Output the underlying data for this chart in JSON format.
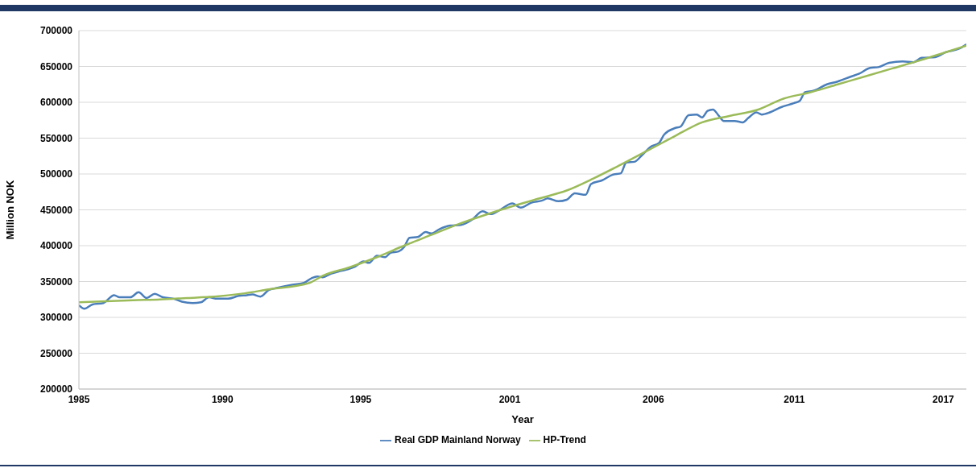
{
  "chart_data": {
    "type": "line",
    "xlabel": "Year",
    "ylabel": "Million NOK",
    "ylim": [
      200000,
      700000
    ],
    "yticks": [
      200000,
      250000,
      300000,
      350000,
      400000,
      450000,
      500000,
      550000,
      600000,
      650000,
      700000
    ],
    "xlim": [
      1985,
      2017.75
    ],
    "xticks": [
      {
        "value": 1985,
        "label": "1985"
      },
      {
        "value": 1990.3,
        "label": "1990"
      },
      {
        "value": 1995.4,
        "label": "1995"
      },
      {
        "value": 2000.9,
        "label": "2001"
      },
      {
        "value": 2006.2,
        "label": "2006"
      },
      {
        "value": 2011.4,
        "label": "2011"
      },
      {
        "value": 2016.9,
        "label": "2017"
      }
    ],
    "grid": "y",
    "legend": "bottom",
    "marker": "none",
    "line_style": "solid",
    "series": [
      {
        "name": "Real GDP Mainland Norway",
        "color": "#4a7ebb",
        "x": [
          1985,
          1985.2,
          1985.5,
          1985.9,
          1986.3,
          1986.5,
          1986.9,
          1987.2,
          1987.5,
          1987.8,
          1988.1,
          1988.5,
          1988.8,
          1989.2,
          1989.5,
          1989.8,
          1990.1,
          1990.5,
          1990.9,
          1991.2,
          1991.4,
          1991.7,
          1992,
          1992.3,
          1992.8,
          1993.3,
          1993.6,
          1993.8,
          1994,
          1994.3,
          1994.7,
          1995.2,
          1995.5,
          1995.7,
          1996,
          1996.3,
          1996.5,
          1996.8,
          1997,
          1997.2,
          1997.5,
          1997.8,
          1998,
          1998.3,
          1998.7,
          1999.1,
          1999.5,
          1999.9,
          2000.2,
          2000.5,
          2001,
          2001.3,
          2001.7,
          2002.1,
          2002.3,
          2002.7,
          2003,
          2003.3,
          2003.7,
          2003.9,
          2004.3,
          2004.7,
          2005,
          2005.2,
          2005.5,
          2005.8,
          2006.1,
          2006.4,
          2006.6,
          2007,
          2007.2,
          2007.5,
          2007.8,
          2008,
          2008.2,
          2008.4,
          2008.6,
          2008.8,
          2009.2,
          2009.5,
          2009.7,
          2010,
          2010.2,
          2010.5,
          2010.9,
          2011.4,
          2011.6,
          2011.8,
          2012.1,
          2012.6,
          2013,
          2013.5,
          2013.8,
          2014.2,
          2014.5,
          2014.9,
          2015.4,
          2015.8,
          2016.1,
          2016.6,
          2017,
          2017.5,
          2017.75
        ],
        "values": [
          317000,
          312000,
          318000,
          320000,
          331000,
          328000,
          328000,
          335000,
          327000,
          333000,
          328000,
          326000,
          322000,
          320000,
          321000,
          328000,
          326000,
          326000,
          330000,
          331000,
          332000,
          329000,
          338000,
          341000,
          345000,
          348000,
          355000,
          357000,
          356000,
          361000,
          365000,
          371000,
          378000,
          376000,
          386000,
          384000,
          390000,
          392000,
          398000,
          411000,
          412000,
          419000,
          417000,
          423000,
          428000,
          429000,
          436000,
          448000,
          444000,
          449000,
          459000,
          453000,
          460000,
          463000,
          466000,
          462000,
          464000,
          473000,
          471000,
          486000,
          491000,
          499000,
          501000,
          516000,
          517000,
          527000,
          538000,
          543000,
          555000,
          564000,
          566000,
          582000,
          583000,
          579000,
          588000,
          590000,
          582000,
          574000,
          574000,
          572000,
          578000,
          586000,
          583000,
          586000,
          593000,
          599000,
          602000,
          614000,
          616000,
          625000,
          629000,
          636000,
          640000,
          648000,
          649000,
          655000,
          657000,
          656000,
          662000,
          663000,
          670000,
          675000,
          681000
        ]
      },
      {
        "name": "HP-Trend",
        "color": "#9bbb59",
        "x": [
          1985,
          1987,
          1988,
          1989,
          1990,
          1991,
          1992,
          1993.5,
          1994,
          1995,
          1996,
          1997,
          1998,
          1999,
          2000,
          2001,
          2002,
          2003,
          2004,
          2005,
          2006.5,
          2007,
          2008,
          2009,
          2010,
          2011,
          2012,
          2013,
          2014,
          2015,
          2016,
          2017,
          2017.75
        ],
        "values": [
          321000,
          324000,
          325000,
          327000,
          329000,
          333000,
          339000,
          348000,
          358000,
          370000,
          384000,
          400000,
          415000,
          430000,
          443000,
          455000,
          466000,
          477000,
          494000,
          513000,
          543000,
          553000,
          572000,
          581000,
          589000,
          605000,
          614000,
          625000,
          636000,
          647000,
          658000,
          670000,
          679000
        ]
      }
    ]
  }
}
